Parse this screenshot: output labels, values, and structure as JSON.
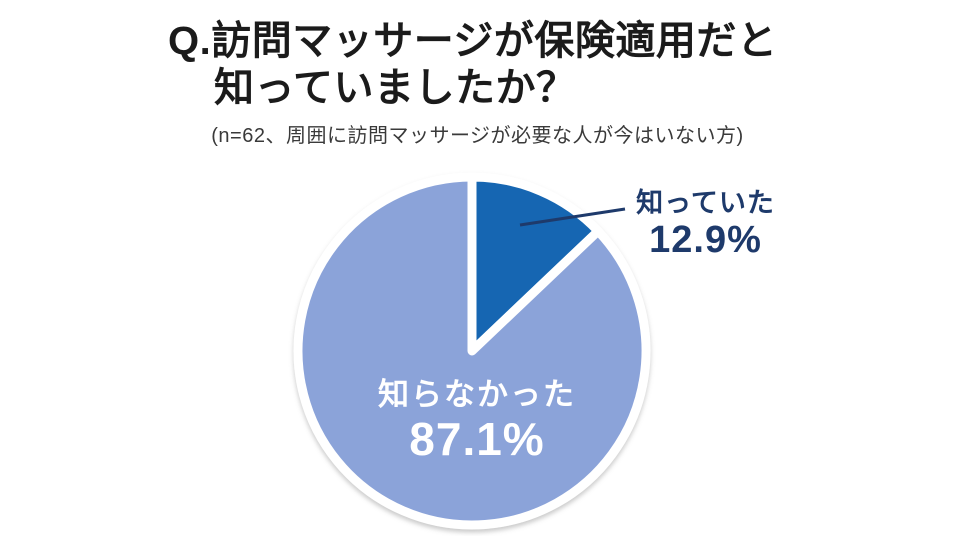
{
  "page": {
    "background": "#ffffff"
  },
  "header": {
    "title_line1": "Q.訪問マッサージが保険適用だと",
    "title_line2": "知っていましたか？",
    "subtitle": "(n=62、周囲に訪問マッサージが必要な人が今はいない方)"
  },
  "colors": {
    "page_bg": "#ffffff",
    "title_text": "#1b1b1b",
    "subtitle_text": "#3a3a3a",
    "navy_label": "#1e3a6b",
    "slice_gap": "#ffffff",
    "inside_label_text": "#ffffff",
    "knew_slice": "#1566b2",
    "didnt_know_slice": "#8ba3d9"
  },
  "chart_data": {
    "type": "pie",
    "title": "Q.訪問マッサージが保険適用だと知っていましたか？",
    "subtitle": "(n=62、周囲に訪問マッサージが必要な人が今はいない方)",
    "n": 62,
    "start_angle_deg": 0,
    "direction": "clockwise",
    "legend_position": "none",
    "gap_color": "#ffffff",
    "slices": [
      {
        "key": "knew",
        "label": "知っていた",
        "value_pct": 12.9,
        "display_pct": "12.9%",
        "color": "#1566b2",
        "label_color": "#1e3a6b",
        "label_placement": "outside-right"
      },
      {
        "key": "didnt-know",
        "label": "知らなかった",
        "value_pct": 87.1,
        "display_pct": "87.1%",
        "color": "#8ba3d9",
        "label_color": "#ffffff",
        "label_placement": "inside"
      }
    ]
  }
}
